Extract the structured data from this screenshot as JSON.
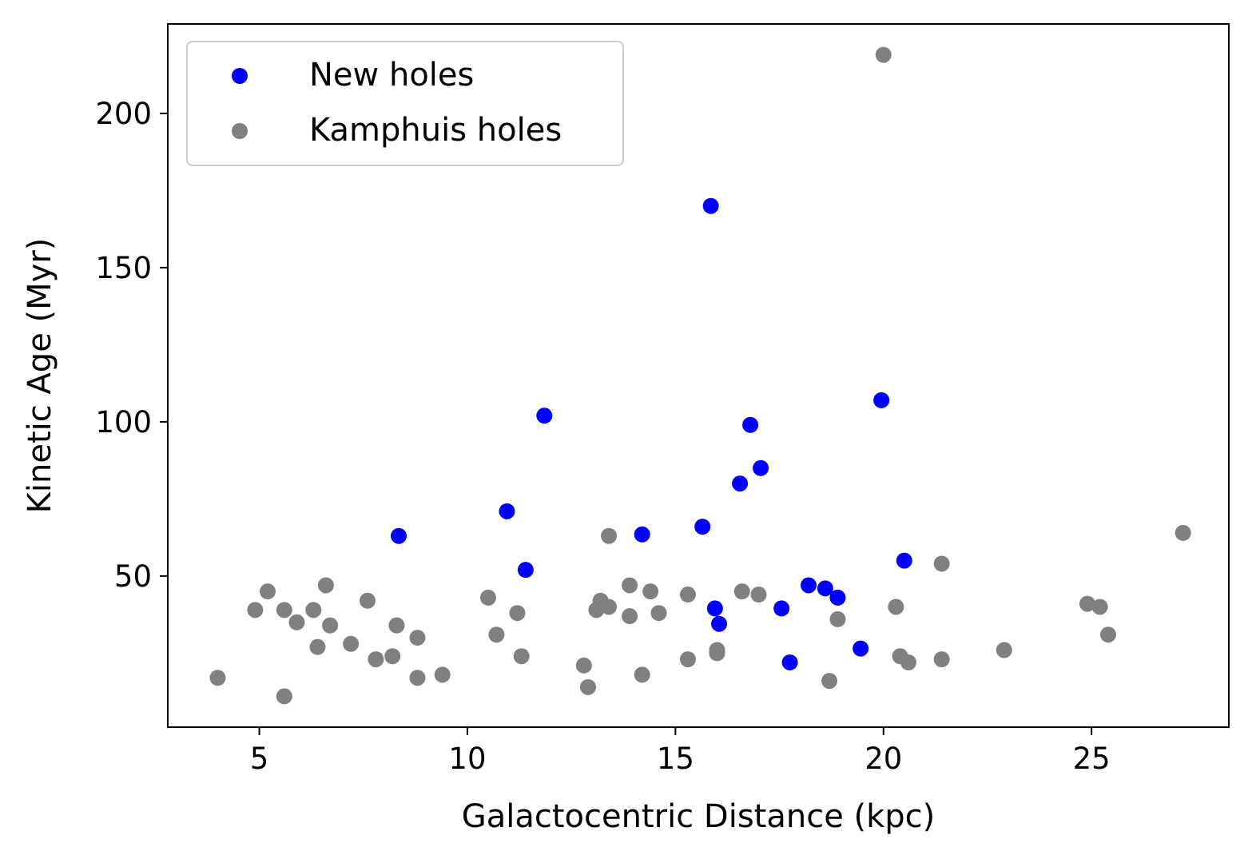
{
  "chart_data": {
    "type": "scatter",
    "title": "",
    "xlabel": "Galactocentric Distance (kpc)",
    "ylabel": "Kinetic Age (Myr)",
    "xlim": [
      2.8,
      28.3
    ],
    "ylim": [
      1,
      229
    ],
    "xticks": [
      5,
      10,
      15,
      20,
      25
    ],
    "yticks": [
      50,
      100,
      150,
      200
    ],
    "grid": false,
    "legend_position": "top-left",
    "series": [
      {
        "name": "New holes",
        "color": "#0000ff",
        "x": [
          8.35,
          10.95,
          11.4,
          11.85,
          14.2,
          15.65,
          15.85,
          15.95,
          16.05,
          16.55,
          16.8,
          17.05,
          17.55,
          17.75,
          18.2,
          18.6,
          18.9,
          19.45,
          19.95,
          20.5
        ],
        "y": [
          63,
          71,
          52,
          102,
          63.5,
          66,
          170,
          39.5,
          34.5,
          80,
          99,
          85,
          39.5,
          22,
          47,
          46,
          43,
          26.5,
          107,
          55
        ]
      },
      {
        "name": "Kamphuis holes",
        "color": "#808080",
        "x": [
          4.0,
          4.9,
          5.2,
          5.6,
          5.6,
          5.9,
          6.3,
          6.4,
          6.6,
          6.7,
          7.2,
          7.6,
          7.8,
          8.2,
          8.3,
          8.8,
          8.8,
          9.4,
          10.5,
          10.7,
          11.2,
          11.3,
          12.8,
          12.9,
          13.1,
          13.2,
          13.4,
          13.4,
          13.9,
          13.9,
          14.2,
          14.4,
          14.6,
          15.3,
          15.3,
          16.0,
          16.0,
          16.6,
          17.0,
          18.7,
          18.9,
          20.0,
          20.3,
          20.4,
          20.6,
          21.4,
          21.4,
          22.9,
          24.9,
          25.2,
          25.4,
          27.2
        ],
        "y": [
          17,
          39,
          45,
          39,
          11,
          35,
          39,
          27,
          47,
          34,
          28,
          42,
          23,
          24,
          34,
          30,
          17,
          18,
          43,
          31,
          38,
          24,
          21,
          14,
          39,
          42,
          63,
          40,
          47,
          37,
          18,
          45,
          38,
          44,
          23,
          26,
          25,
          45,
          44,
          16,
          36,
          219,
          40,
          24,
          22,
          54,
          23,
          26,
          41,
          40,
          31,
          64
        ]
      }
    ]
  }
}
